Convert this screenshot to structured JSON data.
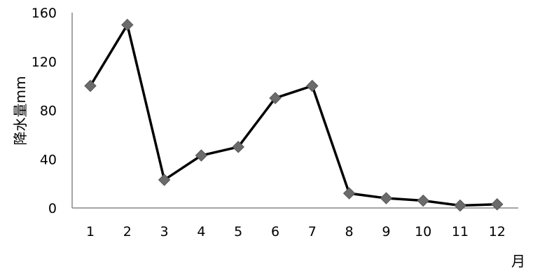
{
  "chart_data": {
    "type": "line",
    "title": "",
    "xlabel": "月",
    "ylabel": "降水量mm",
    "x": [
      "1",
      "2",
      "3",
      "4",
      "5",
      "6",
      "7",
      "8",
      "9",
      "10",
      "11",
      "12"
    ],
    "y_ticks": [
      "0",
      "40",
      "80",
      "120",
      "160"
    ],
    "ylim": [
      0,
      160
    ],
    "grid": false,
    "legend": "none",
    "series": [
      {
        "values": [
          100,
          150,
          23,
          43,
          50,
          90,
          100,
          12,
          8,
          6,
          2,
          3
        ],
        "line_color": "#000000",
        "marker": "diamond",
        "marker_color": "#6b6b6b"
      }
    ]
  }
}
